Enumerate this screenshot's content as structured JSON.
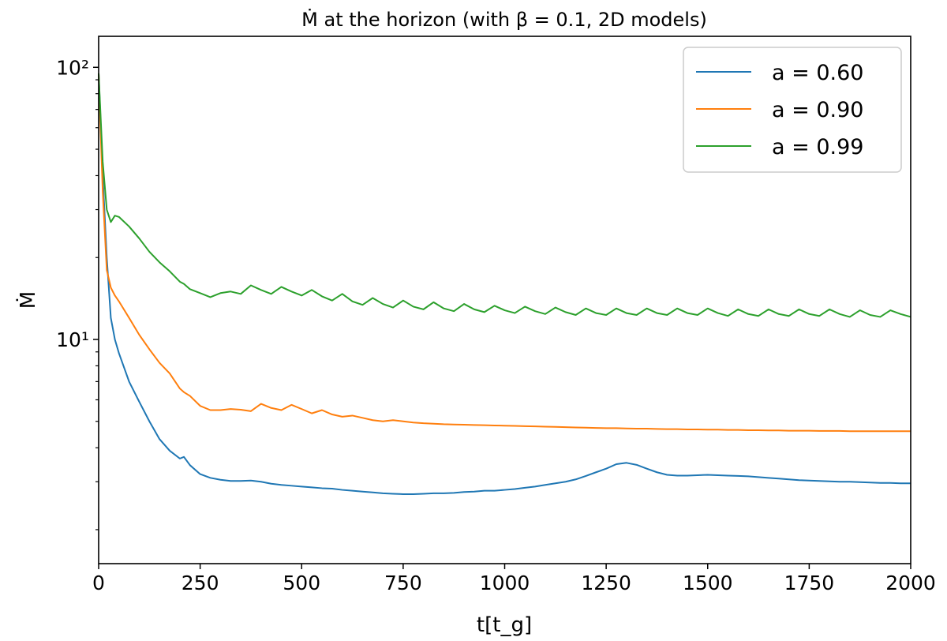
{
  "chart_data": {
    "type": "line",
    "title": "Ṁ at the horizon (with β = 0.1, 2D models)",
    "xlabel": "t[t_g]",
    "ylabel": "Ṁ",
    "xlim": [
      0,
      2000
    ],
    "ylim": [
      1.5,
      130
    ],
    "yscale": "log",
    "x_ticks": [
      0,
      250,
      500,
      750,
      1000,
      1250,
      1500,
      1750,
      2000
    ],
    "x_tick_labels": [
      "0",
      "250",
      "500",
      "750",
      "1000",
      "1250",
      "1500",
      "1750",
      "2000"
    ],
    "y_tick_labels": [
      "10¹",
      "10²"
    ],
    "grid": false,
    "legend_position": "top-right",
    "x": [
      0,
      10,
      20,
      30,
      40,
      50,
      75,
      100,
      125,
      150,
      175,
      200,
      210,
      225,
      250,
      275,
      300,
      325,
      350,
      375,
      400,
      425,
      450,
      475,
      500,
      525,
      550,
      575,
      600,
      625,
      650,
      675,
      700,
      725,
      750,
      775,
      800,
      825,
      850,
      875,
      900,
      925,
      950,
      975,
      1000,
      1025,
      1050,
      1075,
      1100,
      1125,
      1150,
      1175,
      1200,
      1225,
      1250,
      1275,
      1300,
      1325,
      1350,
      1375,
      1400,
      1425,
      1450,
      1475,
      1500,
      1525,
      1550,
      1575,
      1600,
      1625,
      1650,
      1675,
      1700,
      1725,
      1750,
      1775,
      1800,
      1825,
      1850,
      1875,
      1900,
      1925,
      1950,
      1975,
      2000
    ],
    "series": [
      {
        "name": "a = 0.60",
        "color": "#1f77b4",
        "values": [
          95,
          40,
          20,
          12,
          10,
          8.9,
          7.0,
          5.9,
          5.0,
          4.3,
          3.9,
          3.65,
          3.7,
          3.45,
          3.2,
          3.1,
          3.05,
          3.02,
          3.02,
          3.03,
          3.0,
          2.95,
          2.92,
          2.9,
          2.88,
          2.86,
          2.84,
          2.83,
          2.8,
          2.78,
          2.76,
          2.74,
          2.72,
          2.71,
          2.7,
          2.7,
          2.71,
          2.72,
          2.72,
          2.73,
          2.75,
          2.76,
          2.78,
          2.78,
          2.8,
          2.82,
          2.85,
          2.88,
          2.92,
          2.96,
          3.0,
          3.06,
          3.15,
          3.25,
          3.35,
          3.48,
          3.52,
          3.46,
          3.35,
          3.25,
          3.18,
          3.16,
          3.16,
          3.17,
          3.18,
          3.17,
          3.16,
          3.15,
          3.14,
          3.12,
          3.1,
          3.08,
          3.06,
          3.04,
          3.03,
          3.02,
          3.01,
          3.0,
          3.0,
          2.99,
          2.98,
          2.97,
          2.97,
          2.96,
          2.96
        ]
      },
      {
        "name": "a = 0.90",
        "color": "#ff7f0e",
        "values": [
          95,
          35,
          18,
          15.5,
          14.5,
          13.8,
          12.0,
          10.4,
          9.2,
          8.2,
          7.5,
          6.6,
          6.4,
          6.2,
          5.7,
          5.5,
          5.5,
          5.55,
          5.52,
          5.45,
          5.8,
          5.6,
          5.5,
          5.75,
          5.55,
          5.35,
          5.5,
          5.3,
          5.2,
          5.25,
          5.15,
          5.05,
          5.0,
          5.05,
          5.0,
          4.95,
          4.92,
          4.9,
          4.88,
          4.87,
          4.86,
          4.85,
          4.84,
          4.83,
          4.82,
          4.81,
          4.8,
          4.79,
          4.78,
          4.77,
          4.76,
          4.75,
          4.74,
          4.73,
          4.72,
          4.72,
          4.71,
          4.7,
          4.7,
          4.69,
          4.68,
          4.68,
          4.67,
          4.67,
          4.66,
          4.66,
          4.65,
          4.65,
          4.64,
          4.64,
          4.63,
          4.63,
          4.62,
          4.62,
          4.62,
          4.61,
          4.61,
          4.61,
          4.6,
          4.6,
          4.6,
          4.6,
          4.6,
          4.6,
          4.6
        ]
      },
      {
        "name": "a = 0.99",
        "color": "#2ca02c",
        "values": [
          95,
          45,
          30,
          27,
          28.5,
          28.2,
          26.0,
          23.5,
          21.0,
          19.2,
          17.8,
          16.3,
          16.0,
          15.3,
          14.8,
          14.3,
          14.8,
          15.0,
          14.7,
          15.8,
          15.2,
          14.7,
          15.6,
          15.0,
          14.5,
          15.2,
          14.4,
          13.9,
          14.7,
          13.8,
          13.4,
          14.2,
          13.5,
          13.1,
          13.9,
          13.2,
          12.9,
          13.7,
          13.0,
          12.7,
          13.5,
          12.9,
          12.6,
          13.3,
          12.8,
          12.5,
          13.2,
          12.7,
          12.4,
          13.1,
          12.6,
          12.3,
          13.0,
          12.5,
          12.3,
          13.0,
          12.5,
          12.3,
          13.0,
          12.5,
          12.3,
          13.0,
          12.5,
          12.3,
          13.0,
          12.5,
          12.2,
          12.9,
          12.4,
          12.2,
          12.9,
          12.4,
          12.2,
          12.9,
          12.4,
          12.2,
          12.9,
          12.4,
          12.1,
          12.8,
          12.3,
          12.1,
          12.8,
          12.4,
          12.1
        ]
      }
    ]
  }
}
